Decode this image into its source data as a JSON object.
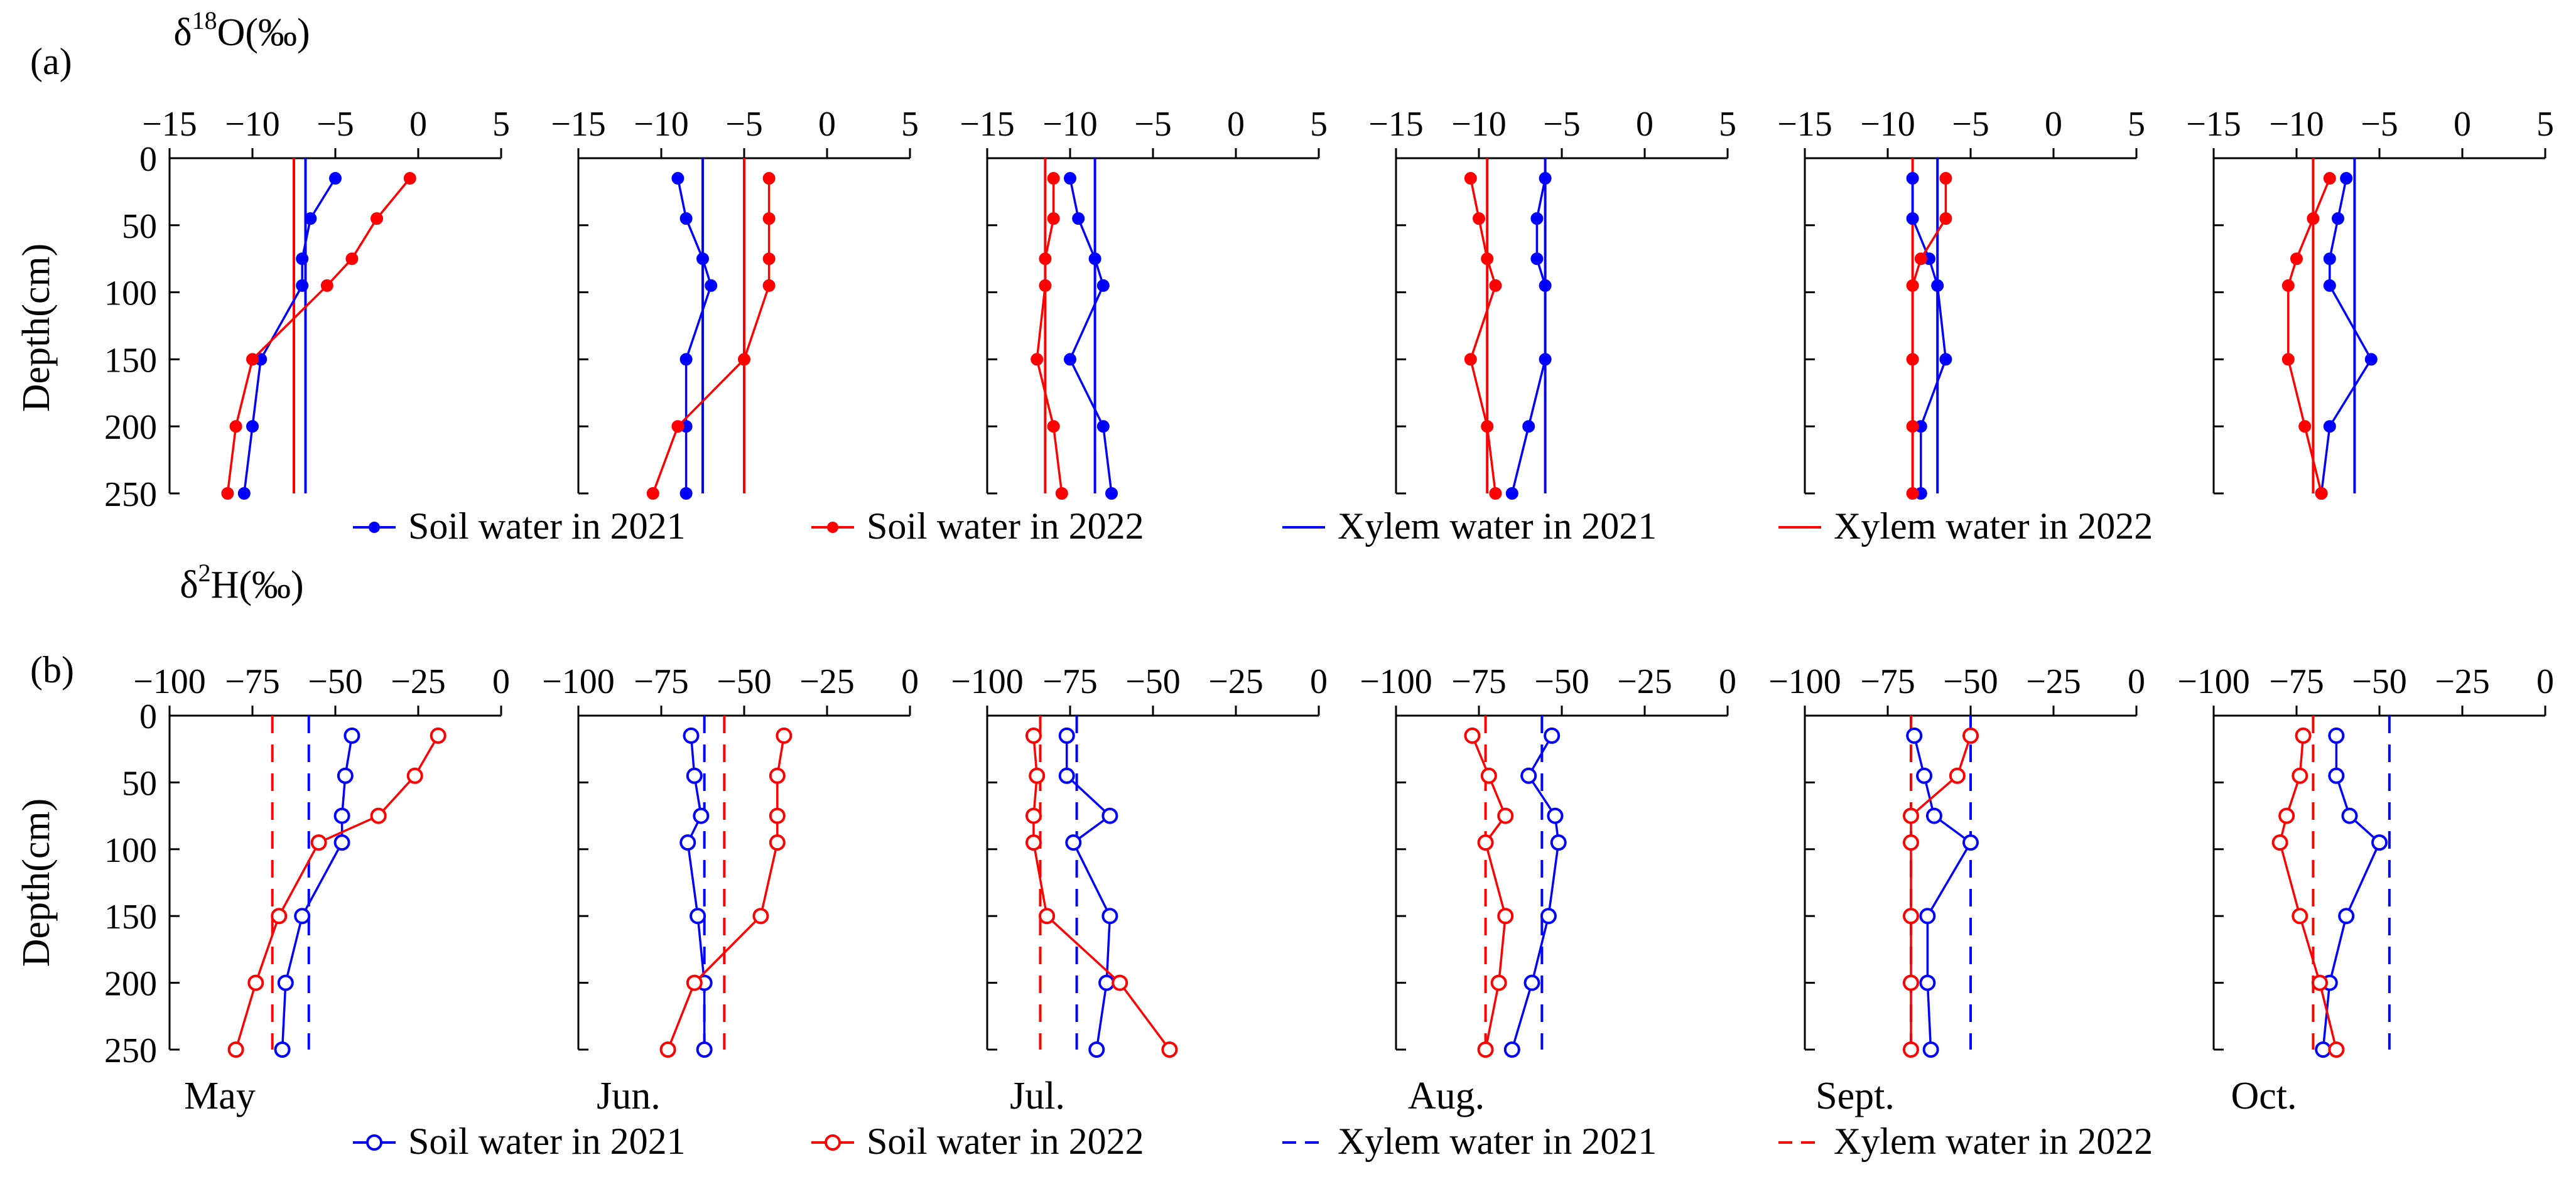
{
  "colors": {
    "y2021": "#0000ff",
    "y2022": "#ff0000",
    "axis": "#000000"
  },
  "chart_data": [
    {
      "panel": "(a)",
      "type": "line",
      "marker": "filled",
      "xlabel": "δ18O(‰)",
      "ylabel": "Depth(cm)",
      "xlim": [
        -15,
        5
      ],
      "ylim": [
        0,
        250
      ],
      "xticks": [
        "−15",
        "−10",
        "−5",
        "0",
        "5"
      ],
      "yticks": [
        "0",
        "50",
        "100",
        "150",
        "200",
        "250"
      ],
      "depths": [
        15,
        45,
        75,
        95,
        150,
        200,
        250
      ],
      "legend": [
        {
          "label": "Soil water in 2021",
          "style": "line-dot",
          "color": "#0000ff"
        },
        {
          "label": "Soil water in 2022",
          "style": "line-dot",
          "color": "#ff0000"
        },
        {
          "label": "Xylem water in 2021",
          "style": "line",
          "color": "#0000ff"
        },
        {
          "label": "Xylem water in 2022",
          "style": "line",
          "color": "#ff0000"
        }
      ],
      "months": [
        {
          "soil_2021": [
            -5.0,
            -6.5,
            -7.0,
            -7.0,
            -9.5,
            -10.0,
            -10.5
          ],
          "soil_2022": [
            -0.5,
            -2.5,
            -4.0,
            -5.5,
            -10.0,
            -11.0,
            -11.5
          ],
          "xylem_2021": -6.8,
          "xylem_2022": -7.5
        },
        {
          "soil_2021": [
            -9.0,
            -8.5,
            -7.5,
            -7.0,
            -8.5,
            -8.5,
            -8.5
          ],
          "soil_2022": [
            -3.5,
            -3.5,
            -3.5,
            -3.5,
            -5.0,
            -9.0,
            -10.5
          ],
          "xylem_2021": -7.5,
          "xylem_2022": -5.0
        },
        {
          "soil_2021": [
            -10.0,
            -9.5,
            -8.5,
            -8.0,
            -10.0,
            -8.0,
            -7.5
          ],
          "soil_2022": [
            -11.0,
            -11.0,
            -11.5,
            -11.5,
            -12.0,
            -11.0,
            -10.5
          ],
          "xylem_2021": -8.5,
          "xylem_2022": -11.5
        },
        {
          "soil_2021": [
            -6.0,
            -6.5,
            -6.5,
            -6.0,
            -6.0,
            -7.0,
            -8.0
          ],
          "soil_2022": [
            -10.5,
            -10.0,
            -9.5,
            -9.0,
            -10.5,
            -9.5,
            -9.0
          ],
          "xylem_2021": -6.0,
          "xylem_2022": -9.5
        },
        {
          "soil_2021": [
            -8.5,
            -8.5,
            -7.5,
            -7.0,
            -6.5,
            -8.0,
            -8.0
          ],
          "soil_2022": [
            -6.5,
            -6.5,
            -8.0,
            -8.5,
            -8.5,
            -8.5,
            -8.5
          ],
          "xylem_2021": -7.0,
          "xylem_2022": -8.5
        },
        {
          "soil_2021": [
            -7.0,
            -7.5,
            -8.0,
            -8.0,
            -5.5,
            -8.0,
            -8.5
          ],
          "soil_2022": [
            -8.0,
            -9.0,
            -10.0,
            -10.5,
            -10.5,
            -9.5,
            -8.5
          ],
          "xylem_2021": -6.5,
          "xylem_2022": -9.0
        }
      ]
    },
    {
      "panel": "(b)",
      "type": "line",
      "marker": "open",
      "xlabel": "δ2H(‰)",
      "ylabel": "Depth(cm)",
      "xlim": [
        -100,
        0
      ],
      "ylim": [
        0,
        250
      ],
      "xticks": [
        "−100",
        "−75",
        "−50",
        "−25",
        "0"
      ],
      "yticks": [
        "0",
        "50",
        "100",
        "150",
        "200",
        "250"
      ],
      "depths": [
        15,
        45,
        75,
        95,
        150,
        200,
        250
      ],
      "month_labels": [
        "May",
        "Jun.",
        "Jul.",
        "Aug.",
        "Sept.",
        "Oct."
      ],
      "legend": [
        {
          "label": "Soil water in 2021",
          "style": "line-circle",
          "color": "#0000ff"
        },
        {
          "label": "Soil water in 2022",
          "style": "line-circle",
          "color": "#ff0000"
        },
        {
          "label": "Xylem water in 2021",
          "style": "dashed",
          "color": "#0000ff"
        },
        {
          "label": "Xylem water in 2022",
          "style": "dashed",
          "color": "#ff0000"
        }
      ],
      "months": [
        {
          "soil_2021": [
            -45,
            -47,
            -48,
            -48,
            -60,
            -65,
            -66
          ],
          "soil_2022": [
            -19,
            -26,
            -37,
            -55,
            -67,
            -74,
            -80
          ],
          "xylem_2021": -58,
          "xylem_2022": -69
        },
        {
          "soil_2021": [
            -66,
            -65,
            -63,
            -67,
            -64,
            -62,
            -62
          ],
          "soil_2022": [
            -38,
            -40,
            -40,
            -40,
            -45,
            -65,
            -73
          ],
          "xylem_2021": -62,
          "xylem_2022": -56
        },
        {
          "soil_2021": [
            -76,
            -76,
            -63,
            -74,
            -63,
            -64,
            -67
          ],
          "soil_2022": [
            -86,
            -85,
            -86,
            -86,
            -82,
            -60,
            -45
          ],
          "xylem_2021": -73,
          "xylem_2022": -84
        },
        {
          "soil_2021": [
            -53,
            -60,
            -52,
            -51,
            -54,
            -59,
            -65
          ],
          "soil_2022": [
            -77,
            -72,
            -67,
            -73,
            -67,
            -69,
            -73
          ],
          "xylem_2021": -56,
          "xylem_2022": -73
        },
        {
          "soil_2021": [
            -67,
            -64,
            -61,
            -50,
            -63,
            -63,
            -62
          ],
          "soil_2022": [
            -50,
            -54,
            -68,
            -68,
            -68,
            -68,
            -68
          ],
          "xylem_2021": -50,
          "xylem_2022": -68
        },
        {
          "soil_2021": [
            -63,
            -63,
            -59,
            -50,
            -60,
            -65,
            -67
          ],
          "soil_2022": [
            -73,
            -74,
            -78,
            -80,
            -74,
            -68,
            -63
          ],
          "xylem_2021": -47,
          "xylem_2022": -70
        }
      ]
    }
  ]
}
